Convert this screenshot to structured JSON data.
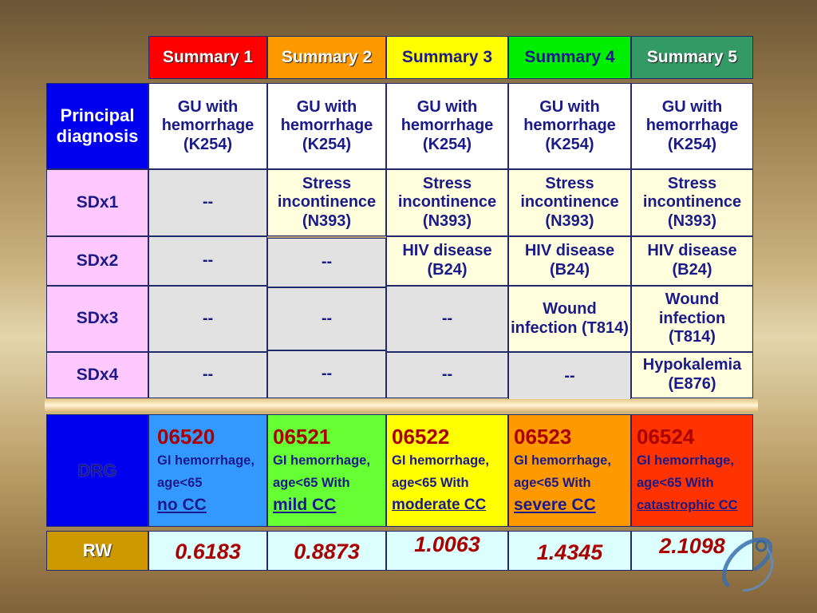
{
  "summaries": [
    {
      "label": "Summary 1",
      "color": "#ff0000"
    },
    {
      "label": "Summary 2",
      "color": "#ff9900"
    },
    {
      "label": "Summary 3",
      "color": "#ffff00"
    },
    {
      "label": "Summary 4",
      "color": "#00ee00"
    },
    {
      "label": "Summary 5",
      "color": "#339966"
    }
  ],
  "principal": {
    "label": "Principal diagnosis",
    "values": [
      "GU with hemorrhage (K254)",
      "GU with hemorrhage (K254)",
      "GU with hemorrhage (K254)",
      "GU with hemorrhage (K254)",
      "GU with hemorrhage (K254)"
    ]
  },
  "sdx_rows": [
    {
      "label": "SDx1",
      "values": [
        "--",
        "Stress incontinence (N393)",
        "Stress incontinence (N393)",
        "Stress incontinence (N393)",
        "Stress incontinence (N393)"
      ]
    },
    {
      "label": "SDx2",
      "values": [
        "--",
        "--",
        "HIV disease (B24)",
        "HIV disease (B24)",
        "HIV disease (B24)"
      ]
    },
    {
      "label": "SDx3",
      "values": [
        "--",
        "--",
        "--",
        "Wound infection (T814)",
        "Wound infection (T814)"
      ]
    },
    {
      "label": "SDx4",
      "values": [
        "--",
        "--",
        "--",
        "--",
        "Hypokalemia (E876)"
      ]
    }
  ],
  "drg": {
    "label": "DRG",
    "items": [
      {
        "code": "06520",
        "line1": "GI hemorrhage,",
        "line2": "age<65",
        "cc": "no CC",
        "color": "#3399ff"
      },
      {
        "code": "06521",
        "line1": "GI hemorrhage,",
        "line2": "age<65 With",
        "cc": "mild  CC",
        "color": "#66ff33"
      },
      {
        "code": "06522",
        "line1": "GI hemorrhage,",
        "line2": "age<65 With",
        "cc": "moderate CC",
        "color": "#ffff00"
      },
      {
        "code": "06523",
        "line1": "GI hemorrhage,",
        "line2": "age<65 With",
        "cc": "severe  CC",
        "color": "#ff9900"
      },
      {
        "code": "06524",
        "line1": "GI hemorrhage,",
        "line2": "age<65 With",
        "cc": "catastrophic CC",
        "color": "#ff3300"
      }
    ]
  },
  "rw": {
    "label": "RW",
    "values": [
      "0.6183",
      "0.8873",
      "1.0063",
      "1.4345",
      "2.1098"
    ]
  },
  "colors": {
    "navy": "#1a1a8a",
    "dark_red": "#aa0000",
    "filled_cell": "#ffffdd",
    "empty_cell": "#e2e2e2",
    "row_header": "#ffc8ff",
    "rw_header": "#cc9900",
    "rw_cell": "#dcffff"
  }
}
